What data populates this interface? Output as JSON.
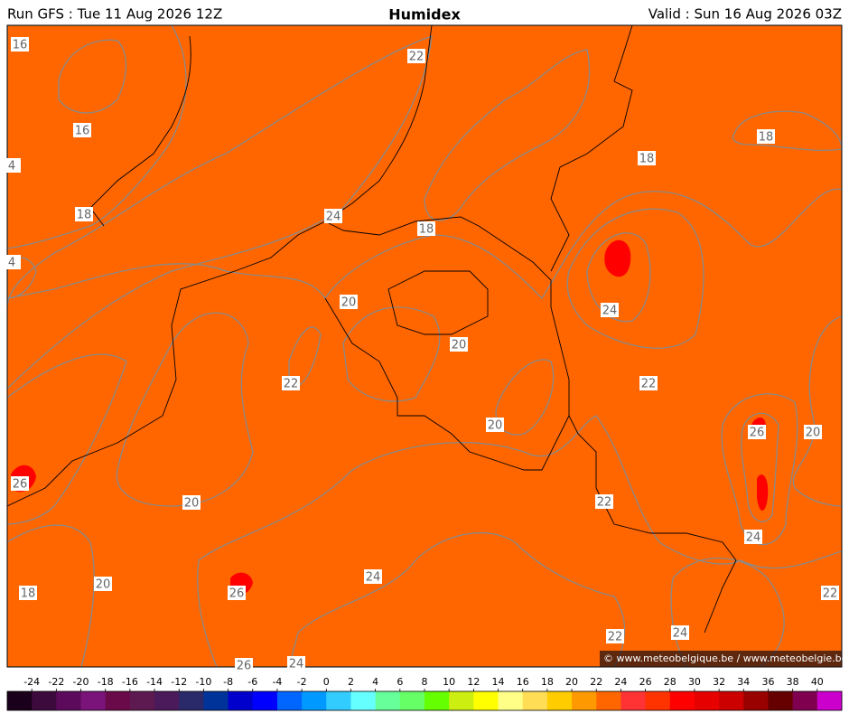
{
  "header": {
    "run": "Run GFS : Tue 11 Aug 2026 12Z",
    "title": "Humidex",
    "valid": "Valid : Sun 16 Aug 2026 03Z"
  },
  "contour_labels": [
    "16",
    "16",
    "4",
    "18",
    "4",
    "22",
    "24",
    "18",
    "18",
    "18",
    "20",
    "24",
    "20",
    "22",
    "22",
    "20",
    "26",
    "20",
    "26",
    "20",
    "22",
    "24",
    "24",
    "18",
    "20",
    "26",
    "22",
    "22",
    "24",
    "26",
    "24"
  ],
  "colorbar": {
    "ticks": [
      -24,
      -22,
      -20,
      -18,
      -16,
      -14,
      -12,
      -10,
      -8,
      -6,
      -4,
      -2,
      0,
      2,
      4,
      6,
      8,
      10,
      12,
      14,
      16,
      18,
      20,
      22,
      24,
      26,
      28,
      30,
      32,
      34,
      36,
      38,
      40
    ],
    "colors": [
      "#1a001a",
      "#3c0a3c",
      "#5c0a5c",
      "#7a147a",
      "#6a0a48",
      "#5c1a50",
      "#4a1a5a",
      "#2a2a6a",
      "#003399",
      "#0000cc",
      "#0000ff",
      "#0066ff",
      "#0099ff",
      "#33ccff",
      "#66ffff",
      "#66ff99",
      "#66ff66",
      "#66ff00",
      "#ccee11",
      "#ffff00",
      "#ffff88",
      "#ffdd55",
      "#ffcc00",
      "#ff9900",
      "#ff6600",
      "#ff3333",
      "#ff3300",
      "#ff0000",
      "#e60000",
      "#cc0000",
      "#990000",
      "#660000",
      "#800050",
      "#cc00cc"
    ]
  },
  "credit": "© www.meteobelgique.be / www.meteobelgie.be"
}
